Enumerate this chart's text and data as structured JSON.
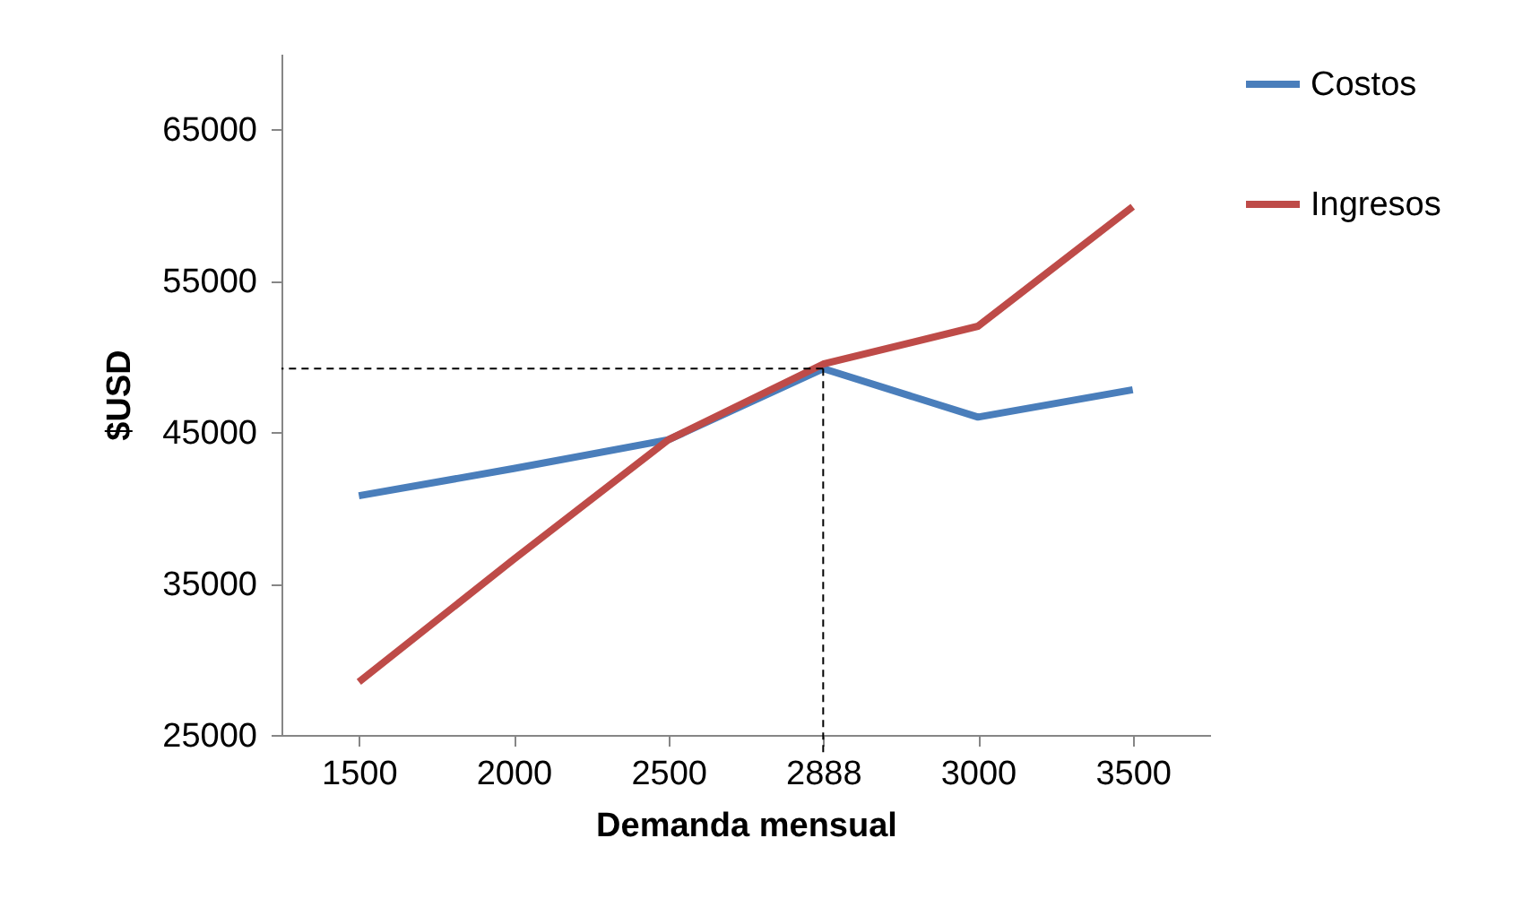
{
  "chart_data": {
    "type": "line",
    "xlabel": "Demanda mensual",
    "ylabel": "$USD",
    "categories": [
      "1500",
      "2000",
      "2500",
      "2888",
      "3000",
      "3500"
    ],
    "series": [
      {
        "name": "Costos",
        "color": "#4a7ebb",
        "values": [
          40800,
          42600,
          44500,
          49200,
          46000,
          47800
        ]
      },
      {
        "name": "Ingresos",
        "color": "#be4b48",
        "values": [
          28500,
          36600,
          44500,
          49500,
          52000,
          59900
        ]
      }
    ],
    "ylim": [
      25000,
      70000
    ],
    "yticks": [
      25000,
      35000,
      45000,
      55000,
      65000
    ],
    "grid": false,
    "legend": "right",
    "marker": "none",
    "line_style": "solid",
    "ref_lines": [
      {
        "axis": "y",
        "value": 49200,
        "line_style": "dashed",
        "color": "#000000"
      },
      {
        "axis": "x",
        "value": "2888",
        "line_style": "dashed",
        "color": "#000000"
      }
    ]
  }
}
